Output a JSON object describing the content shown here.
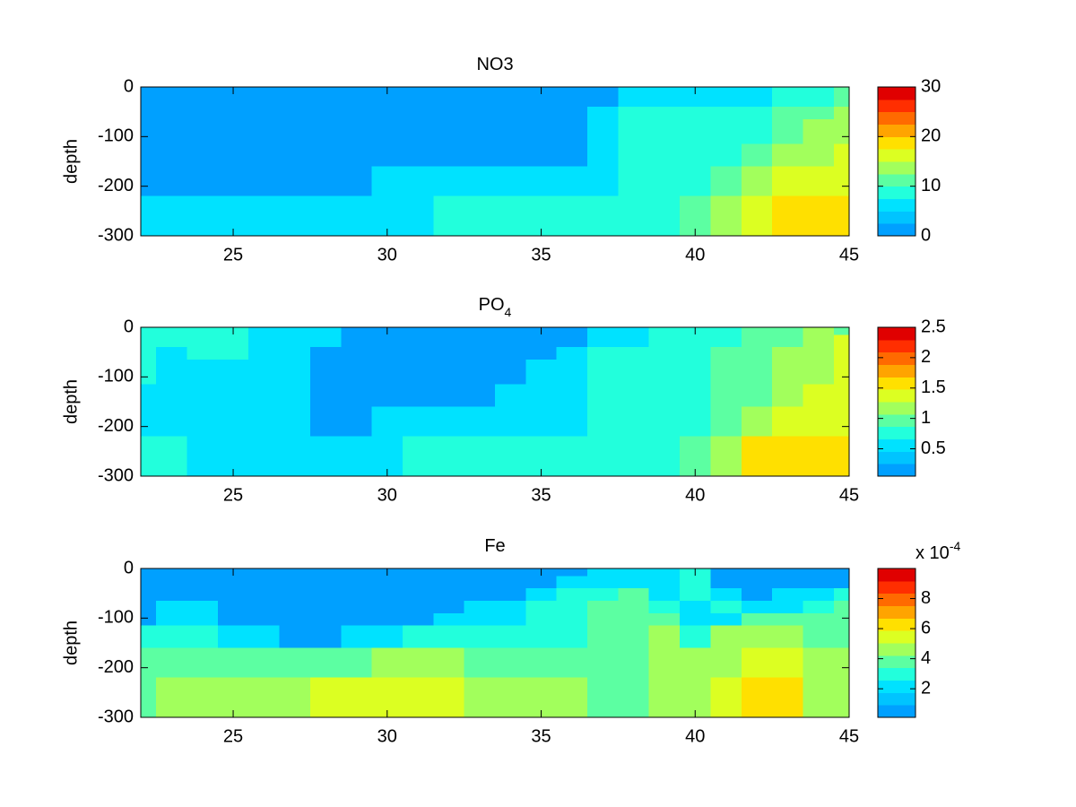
{
  "chart_data": [
    {
      "type": "heatmap",
      "title": "NO3",
      "ylabel": "depth",
      "x": [
        22,
        23,
        24,
        25,
        26,
        27,
        28,
        29,
        30,
        31,
        32,
        33,
        34,
        35,
        36,
        37,
        38,
        39,
        40,
        41,
        42,
        43,
        44,
        45
      ],
      "y": [
        0,
        -30,
        -50,
        -80,
        -100,
        -130,
        -190,
        -250,
        -300
      ],
      "z": [
        [
          2,
          2,
          2,
          2,
          2,
          2,
          2,
          2,
          2,
          2,
          2,
          2,
          2,
          2,
          2,
          2,
          6,
          6,
          6,
          6,
          6,
          9,
          9,
          11
        ],
        [
          2,
          2,
          2,
          2,
          2,
          2,
          2,
          2,
          2,
          2,
          2,
          2,
          2,
          2,
          2,
          2,
          6,
          6,
          6,
          6,
          6,
          9,
          9,
          11
        ],
        [
          2,
          2,
          2,
          2,
          2,
          2,
          2,
          2,
          2,
          2,
          2,
          2,
          2,
          2,
          2,
          6,
          9,
          9,
          9,
          9,
          9,
          11,
          11,
          14
        ],
        [
          2,
          2,
          2,
          2,
          2,
          2,
          2,
          2,
          2,
          2,
          2,
          2,
          2,
          2,
          2,
          6,
          9,
          9,
          9,
          9,
          9,
          11,
          14,
          14
        ],
        [
          2,
          2,
          2,
          2,
          2,
          2,
          2,
          2,
          2,
          2,
          2,
          2,
          2,
          2,
          2,
          6,
          9,
          9,
          9,
          9,
          9,
          11,
          14,
          14
        ],
        [
          2,
          2,
          2,
          2,
          2,
          2,
          2,
          2,
          2,
          2,
          2,
          2,
          2,
          2,
          2,
          6,
          9,
          9,
          9,
          9,
          11,
          14,
          14,
          16
        ],
        [
          2,
          2,
          2,
          2,
          2,
          2,
          2,
          2,
          6,
          6,
          6,
          6,
          6,
          6,
          6,
          6,
          9,
          9,
          9,
          11,
          14,
          16,
          16,
          16
        ],
        [
          6,
          6,
          6,
          6,
          6,
          6,
          6,
          6,
          6,
          6,
          9,
          9,
          9,
          9,
          9,
          9,
          9,
          9,
          11,
          14,
          16,
          19,
          19,
          19
        ],
        [
          6,
          6,
          6,
          6,
          6,
          6,
          6,
          6,
          6,
          6,
          9,
          9,
          9,
          9,
          9,
          9,
          9,
          9,
          11,
          14,
          16,
          19,
          19,
          19
        ]
      ],
      "xlim": [
        22,
        45
      ],
      "ylim": [
        -300,
        0
      ],
      "xticks": [
        25,
        30,
        35,
        40,
        45
      ],
      "yticks": [
        0,
        -100,
        -200,
        -300
      ],
      "clim": [
        0,
        30
      ],
      "cticks": [
        0,
        10,
        20,
        30
      ],
      "colormap": [
        "#00a0ff",
        "#00c4ff",
        "#00e2ff",
        "#22ffdc",
        "#5cffa2",
        "#a2ff5c",
        "#dcff22",
        "#ffe000",
        "#ffa400",
        "#ff6a00",
        "#ff2e00",
        "#e00000"
      ]
    },
    {
      "type": "heatmap",
      "title": "PO",
      "title_subscript": "4",
      "ylabel": "depth",
      "x": [
        22,
        23,
        24,
        25,
        26,
        27,
        28,
        29,
        30,
        31,
        32,
        33,
        34,
        35,
        36,
        37,
        38,
        39,
        40,
        41,
        42,
        43,
        44,
        45
      ],
      "y": [
        0,
        -30,
        -50,
        -80,
        -100,
        -130,
        -190,
        -250,
        -300
      ],
      "z": [
        [
          0.75,
          0.75,
          0.75,
          0.75,
          0.55,
          0.55,
          0.55,
          0.15,
          0.15,
          0.15,
          0.15,
          0.15,
          0.15,
          0.15,
          0.15,
          0.55,
          0.55,
          0.75,
          0.75,
          0.75,
          0.95,
          0.95,
          1.2,
          0.95
        ],
        [
          0.75,
          0.75,
          0.75,
          0.75,
          0.55,
          0.55,
          0.55,
          0.15,
          0.15,
          0.15,
          0.15,
          0.15,
          0.15,
          0.15,
          0.15,
          0.55,
          0.55,
          0.75,
          0.75,
          0.75,
          0.95,
          0.95,
          1.2,
          1.4
        ],
        [
          0.75,
          0.55,
          0.75,
          0.75,
          0.55,
          0.55,
          0.15,
          0.15,
          0.15,
          0.15,
          0.15,
          0.15,
          0.15,
          0.15,
          0.55,
          0.75,
          0.75,
          0.75,
          0.75,
          0.95,
          0.95,
          1.2,
          1.2,
          1.4
        ],
        [
          0.75,
          0.55,
          0.55,
          0.55,
          0.55,
          0.55,
          0.15,
          0.15,
          0.15,
          0.15,
          0.15,
          0.15,
          0.15,
          0.55,
          0.55,
          0.75,
          0.75,
          0.75,
          0.75,
          0.95,
          0.95,
          1.2,
          1.2,
          1.4
        ],
        [
          0.75,
          0.55,
          0.55,
          0.55,
          0.55,
          0.55,
          0.15,
          0.15,
          0.15,
          0.15,
          0.15,
          0.15,
          0.15,
          0.55,
          0.55,
          0.75,
          0.75,
          0.75,
          0.75,
          0.95,
          0.95,
          1.2,
          1.2,
          1.4
        ],
        [
          0.55,
          0.55,
          0.55,
          0.55,
          0.55,
          0.55,
          0.15,
          0.15,
          0.15,
          0.15,
          0.15,
          0.15,
          0.55,
          0.55,
          0.55,
          0.75,
          0.75,
          0.75,
          0.75,
          0.95,
          0.95,
          1.2,
          1.4,
          1.4
        ],
        [
          0.55,
          0.55,
          0.55,
          0.55,
          0.55,
          0.55,
          0.15,
          0.15,
          0.55,
          0.55,
          0.55,
          0.55,
          0.55,
          0.55,
          0.55,
          0.75,
          0.75,
          0.75,
          0.75,
          0.95,
          1.2,
          1.4,
          1.4,
          1.4
        ],
        [
          0.75,
          0.75,
          0.55,
          0.55,
          0.55,
          0.55,
          0.55,
          0.55,
          0.55,
          0.75,
          0.75,
          0.75,
          0.75,
          0.75,
          0.75,
          0.75,
          0.75,
          0.75,
          0.95,
          1.2,
          1.6,
          1.6,
          1.6,
          1.6
        ],
        [
          0.75,
          0.75,
          0.55,
          0.55,
          0.55,
          0.55,
          0.55,
          0.55,
          0.55,
          0.75,
          0.75,
          0.75,
          0.75,
          0.75,
          0.75,
          0.75,
          0.75,
          0.75,
          0.95,
          1.2,
          1.6,
          1.6,
          1.6,
          1.6
        ]
      ],
      "xlim": [
        22,
        45
      ],
      "ylim": [
        -300,
        0
      ],
      "xticks": [
        25,
        30,
        35,
        40,
        45
      ],
      "yticks": [
        0,
        -100,
        -200,
        -300
      ],
      "clim": [
        0.05,
        2.5
      ],
      "cticks": [
        0.5,
        1,
        1.5,
        2,
        2.5
      ],
      "colormap": [
        "#00a0ff",
        "#00c4ff",
        "#00e2ff",
        "#22ffdc",
        "#5cffa2",
        "#a2ff5c",
        "#dcff22",
        "#ffe000",
        "#ffa400",
        "#ff6a00",
        "#ff2e00",
        "#e00000"
      ]
    },
    {
      "type": "heatmap",
      "title": "Fe",
      "ylabel": "depth",
      "colorbar_label": "x 10",
      "colorbar_exponent": "-4",
      "x": [
        22,
        23,
        24,
        25,
        26,
        27,
        28,
        29,
        30,
        31,
        32,
        33,
        34,
        35,
        36,
        37,
        38,
        39,
        40,
        41,
        42,
        43,
        44,
        45
      ],
      "y": [
        0,
        -30,
        -50,
        -80,
        -100,
        -130,
        -190,
        -250,
        -300
      ],
      "z": [
        [
          0.5,
          0.5,
          0.5,
          0.5,
          0.5,
          0.5,
          0.5,
          0.5,
          0.5,
          0.5,
          0.5,
          0.5,
          0.5,
          0.5,
          0.5,
          2.2,
          2.2,
          2.2,
          3,
          0.5,
          0.5,
          0.5,
          0.5,
          0.5
        ],
        [
          0.5,
          0.5,
          0.5,
          0.5,
          0.5,
          0.5,
          0.5,
          0.5,
          0.5,
          0.5,
          0.5,
          0.5,
          0.5,
          0.5,
          2.2,
          2.2,
          2.2,
          2.2,
          3,
          0.5,
          0.5,
          0.5,
          0.5,
          0.5
        ],
        [
          0.5,
          0.5,
          0.5,
          0.5,
          0.5,
          0.5,
          0.5,
          0.5,
          0.5,
          0.5,
          0.5,
          0.5,
          0.5,
          2.2,
          3,
          3,
          3.8,
          2.2,
          3,
          2.2,
          0.5,
          2.2,
          2.2,
          3
        ],
        [
          0.5,
          2.2,
          2.2,
          0.5,
          0.5,
          0.5,
          0.5,
          0.5,
          0.5,
          0.5,
          0.5,
          2.2,
          2.2,
          3,
          3,
          3.8,
          3.8,
          3,
          2.2,
          3,
          2.2,
          2.2,
          3,
          3.8
        ],
        [
          0.5,
          2.2,
          2.2,
          0.5,
          0.5,
          0.5,
          0.5,
          0.5,
          0.5,
          0.5,
          2.2,
          2.2,
          2.2,
          3,
          3,
          3.8,
          3.8,
          3.8,
          2.2,
          2.2,
          3.8,
          3.8,
          3.8,
          3.8
        ],
        [
          3,
          3,
          3,
          2.2,
          2.2,
          0.5,
          0.5,
          2.2,
          2.2,
          3,
          3,
          3,
          3,
          3,
          3,
          3.8,
          3.8,
          4.6,
          3,
          4.6,
          4.6,
          4.6,
          3.8,
          3.8
        ],
        [
          3.8,
          3.8,
          3.8,
          3.8,
          3.8,
          3.8,
          3.8,
          3.8,
          4.6,
          4.6,
          4.6,
          3.8,
          3.8,
          3.8,
          3.8,
          3.8,
          3.8,
          4.6,
          4.6,
          4.6,
          5.5,
          5.5,
          4.6,
          4.6
        ],
        [
          3.8,
          4.6,
          4.6,
          4.6,
          4.6,
          4.6,
          5.5,
          5.5,
          5.5,
          5.5,
          5.5,
          4.6,
          4.6,
          4.6,
          4.6,
          3.8,
          3.8,
          4.6,
          4.6,
          5.5,
          6.3,
          6.3,
          4.6,
          4.6
        ],
        [
          3.8,
          4.6,
          4.6,
          4.6,
          4.6,
          4.6,
          5.5,
          5.5,
          5.5,
          5.5,
          5.5,
          4.6,
          4.6,
          4.6,
          4.6,
          3.8,
          3.8,
          4.6,
          4.6,
          5.5,
          6.3,
          6.3,
          4.6,
          4.6
        ]
      ],
      "xlim": [
        22,
        45
      ],
      "ylim": [
        -300,
        0
      ],
      "xticks": [
        25,
        30,
        35,
        40,
        45
      ],
      "yticks": [
        0,
        -100,
        -200,
        -300
      ],
      "clim": [
        0.1,
        10
      ],
      "cticks": [
        2,
        4,
        6,
        8
      ],
      "colormap": [
        "#00a0ff",
        "#00c4ff",
        "#00e2ff",
        "#22ffdc",
        "#5cffa2",
        "#a2ff5c",
        "#dcff22",
        "#ffe000",
        "#ffa400",
        "#ff6a00",
        "#ff2e00",
        "#e00000"
      ]
    }
  ]
}
